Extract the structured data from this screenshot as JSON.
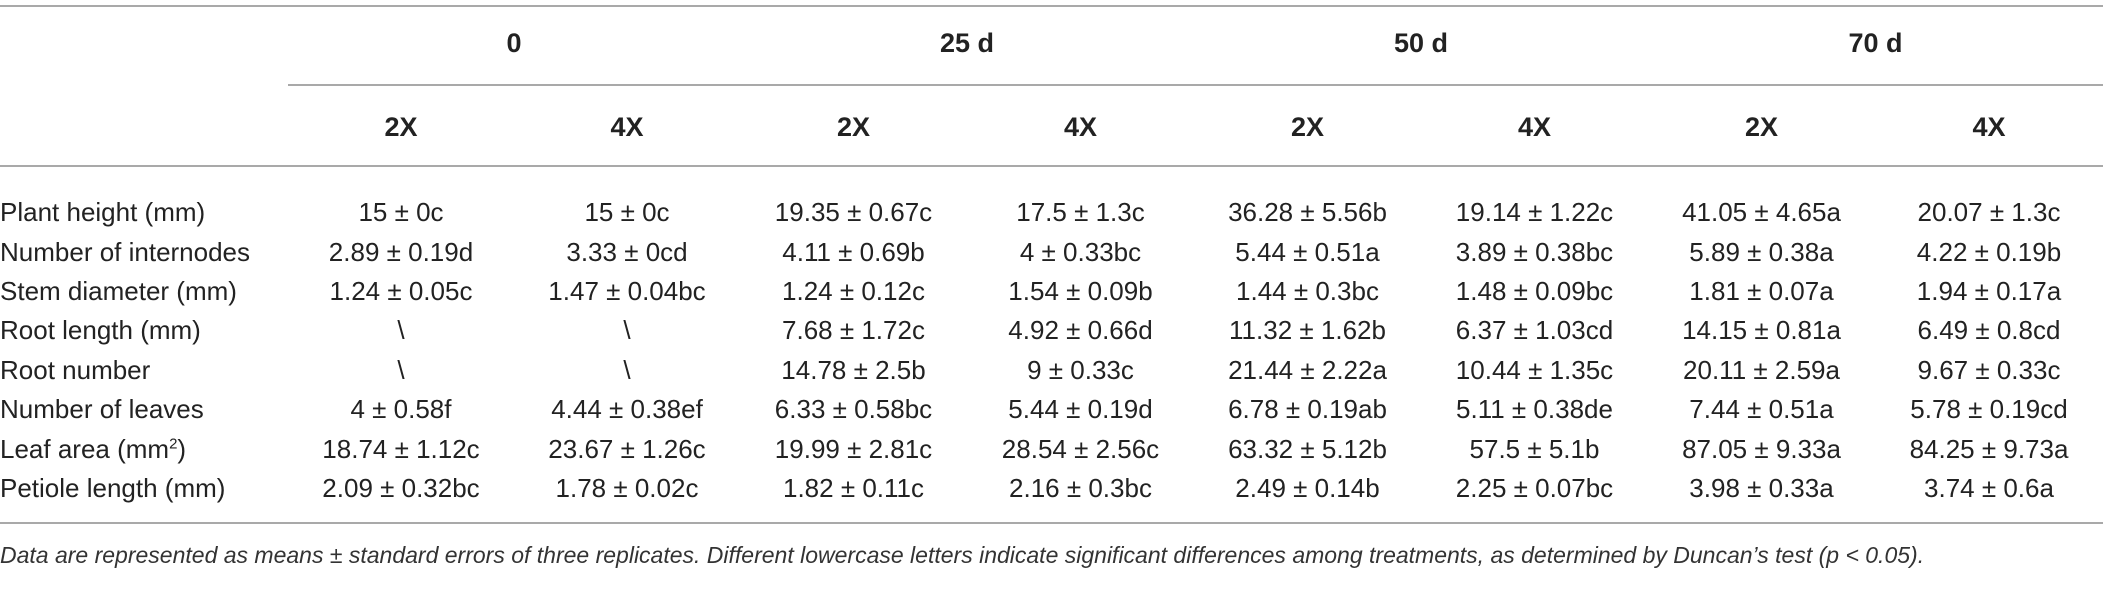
{
  "table": {
    "time_points": [
      "0",
      "25 d",
      "50 d",
      "70 d"
    ],
    "ploidy": [
      "2X",
      "4X",
      "2X",
      "4X",
      "2X",
      "4X",
      "2X",
      "4X"
    ],
    "rows": [
      {
        "label": "Plant height (mm)",
        "cells": [
          "15 ± 0c",
          "15 ± 0c",
          "19.35 ± 0.67c",
          "17.5 ± 1.3c",
          "36.28 ± 5.56b",
          "19.14 ± 1.22c",
          "41.05 ± 4.65a",
          "20.07 ± 1.3c"
        ]
      },
      {
        "label": "Number of internodes",
        "cells": [
          "2.89 ± 0.19d",
          "3.33 ± 0cd",
          "4.11 ± 0.69b",
          "4 ± 0.33bc",
          "5.44 ± 0.51a",
          "3.89 ± 0.38bc",
          "5.89 ± 0.38a",
          "4.22 ± 0.19b"
        ]
      },
      {
        "label": "Stem diameter (mm)",
        "cells": [
          "1.24 ± 0.05c",
          "1.47 ± 0.04bc",
          "1.24 ± 0.12c",
          "1.54 ± 0.09b",
          "1.44 ± 0.3bc",
          "1.48 ± 0.09bc",
          "1.81 ± 0.07a",
          "1.94 ± 0.17a"
        ]
      },
      {
        "label": "Root length (mm)",
        "cells": [
          "\\",
          "\\",
          "7.68 ± 1.72c",
          "4.92 ± 0.66d",
          "11.32 ± 1.62b",
          "6.37 ± 1.03cd",
          "14.15 ± 0.81a",
          "6.49 ± 0.8cd"
        ]
      },
      {
        "label": "Root number",
        "cells": [
          "\\",
          "\\",
          "14.78 ± 2.5b",
          "9 ± 0.33c",
          "21.44 ± 2.22a",
          "10.44 ± 1.35c",
          "20.11 ± 2.59a",
          "9.67 ± 0.33c"
        ]
      },
      {
        "label": "Number of leaves",
        "cells": [
          "4 ± 0.58f",
          "4.44 ± 0.38ef",
          "6.33 ± 0.58bc",
          "5.44 ± 0.19d",
          "6.78 ± 0.19ab",
          "5.11 ± 0.38de",
          "7.44 ± 0.51a",
          "5.78 ± 0.19cd"
        ]
      },
      {
        "label": "Leaf area (mm",
        "label_sup": "2",
        "label_suffix": ")",
        "cells": [
          "18.74 ± 1.12c",
          "23.67 ± 1.26c",
          "19.99 ± 2.81c",
          "28.54 ± 2.56c",
          "63.32 ± 5.12b",
          "57.5 ± 5.1b",
          "87.05 ± 9.33a",
          "84.25 ± 9.73a"
        ]
      },
      {
        "label": "Petiole length (mm)",
        "cells": [
          "2.09 ± 0.32bc",
          "1.78 ± 0.02c",
          "1.82 ± 0.11c",
          "2.16 ± 0.3bc",
          "2.49 ± 0.14b",
          "2.25 ± 0.07bc",
          "3.98 ± 0.33a",
          "3.74 ± 0.6a"
        ]
      }
    ]
  },
  "footnote": "Data are represented as means ± standard errors of three replicates. Different lowercase letters indicate significant differences among treatments, as determined by Duncan’s test (p < 0.05)."
}
